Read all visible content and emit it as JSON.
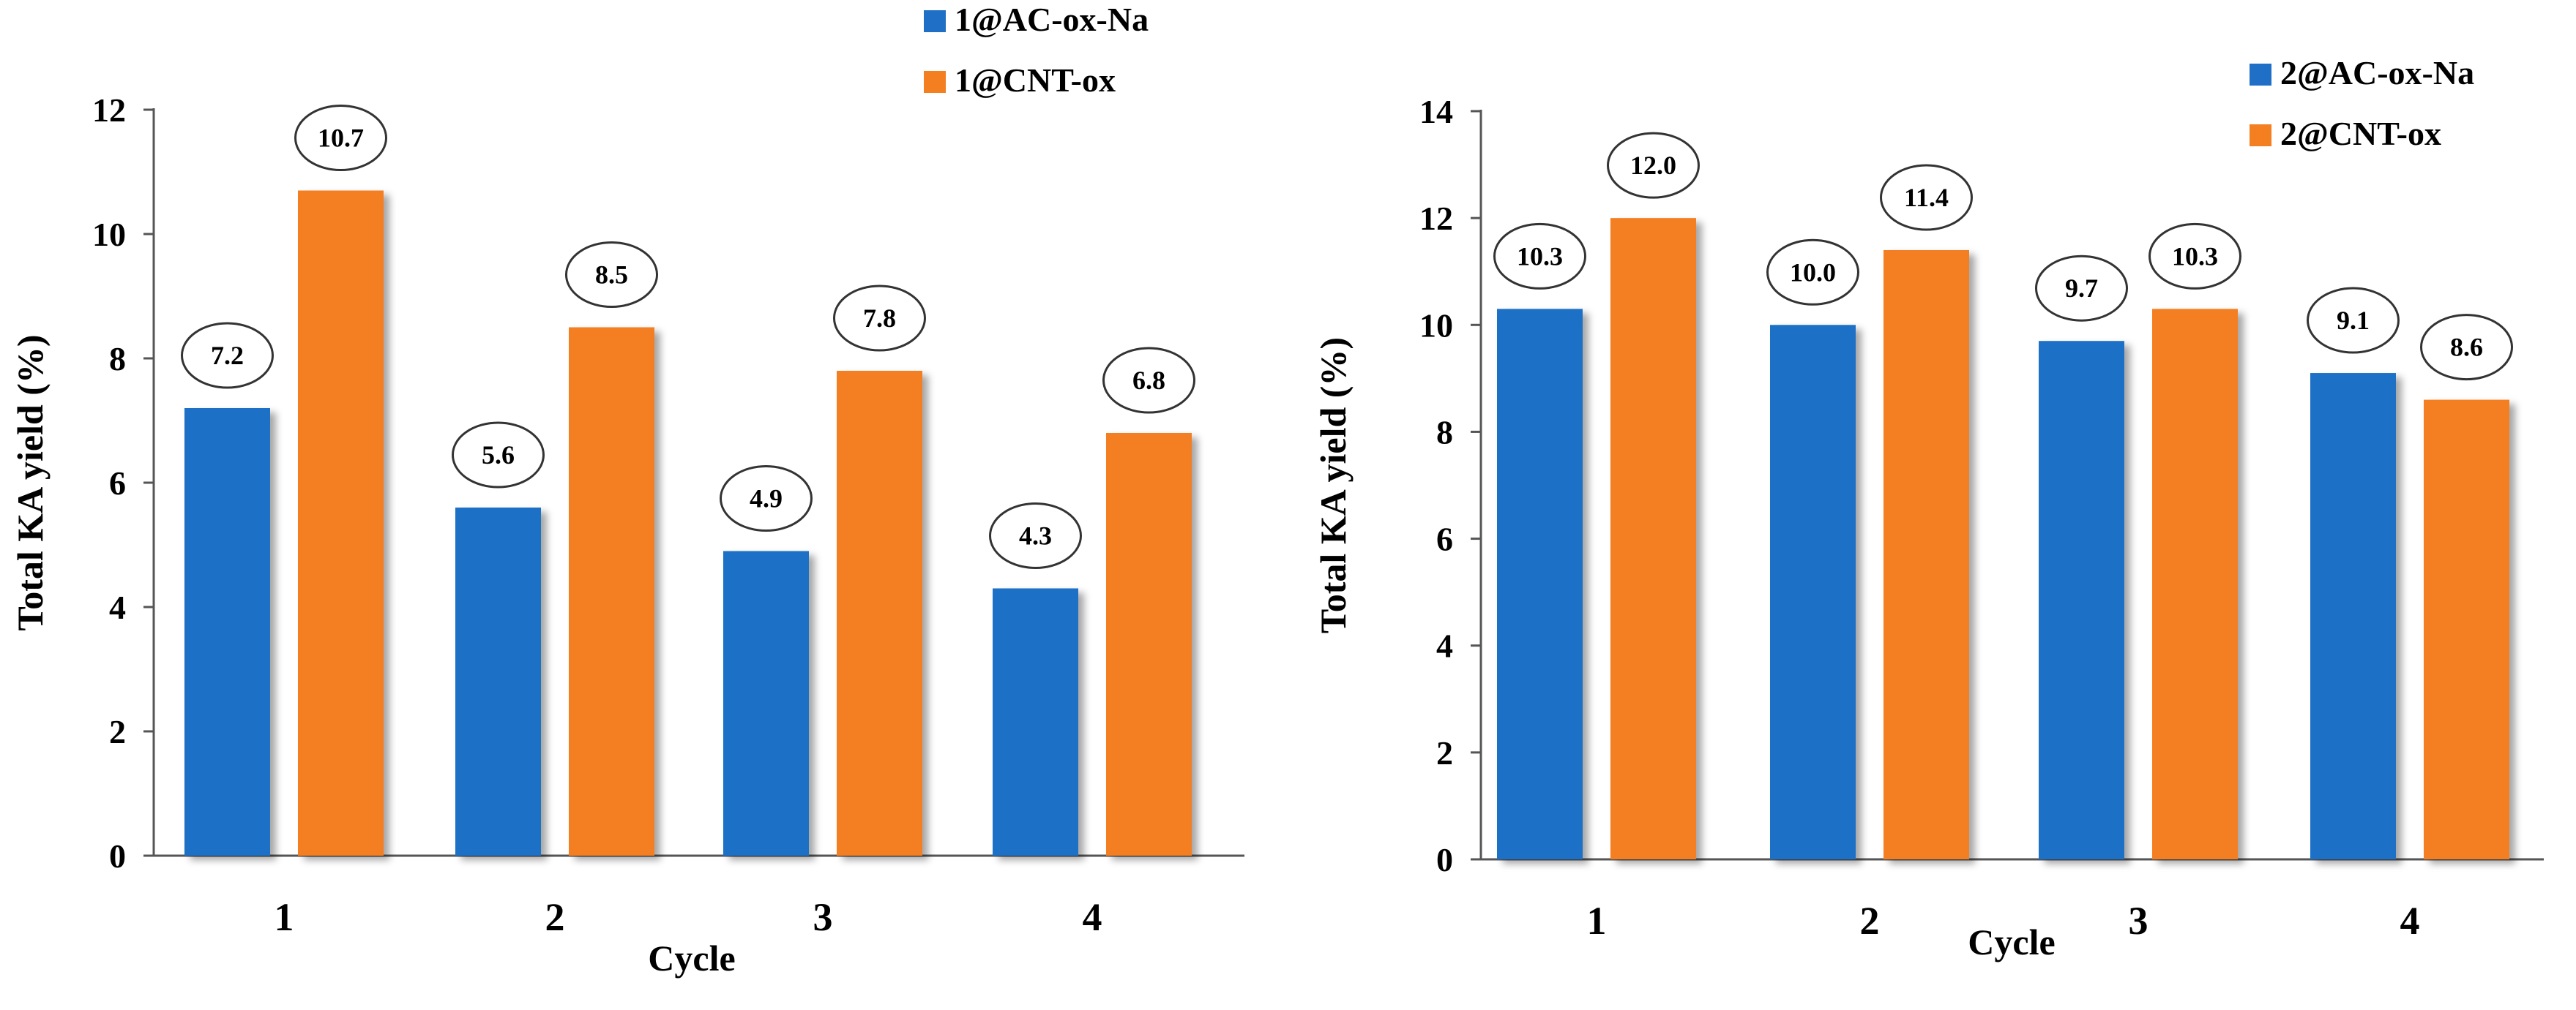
{
  "chart_data": [
    {
      "type": "bar",
      "title": "",
      "categories": [
        "1",
        "2",
        "3",
        "4"
      ],
      "xlabel": "Cycle",
      "ylabel": "Total KA yield (%)",
      "ylim": [
        0,
        12
      ],
      "yticks": [
        0,
        2,
        4,
        6,
        8,
        10,
        12
      ],
      "legend_position": "top-right",
      "series": [
        {
          "name": "1@AC-ox-Na",
          "color": "#1F6FC6",
          "values": [
            7.2,
            5.6,
            4.9,
            4.3
          ],
          "labels": [
            "7.2",
            "5.6",
            "4.9",
            "4.3"
          ]
        },
        {
          "name": "1@CNT-ox",
          "color": "#F47F20",
          "values": [
            10.7,
            8.5,
            7.8,
            6.8
          ],
          "labels": [
            "10.7",
            "8.5",
            "7.8",
            "6.8"
          ]
        }
      ]
    },
    {
      "type": "bar",
      "title": "",
      "categories": [
        "1",
        "2",
        "3",
        "4"
      ],
      "xlabel": "Cycle",
      "ylabel": "Total KA yield (%)",
      "ylim": [
        0,
        14
      ],
      "yticks": [
        0,
        2,
        4,
        6,
        8,
        10,
        12,
        14
      ],
      "legend_position": "top-right",
      "series": [
        {
          "name": "2@AC-ox-Na",
          "color": "#1F6FC6",
          "values": [
            10.3,
            10.0,
            9.7,
            9.1
          ],
          "labels": [
            "10.3",
            "10.0",
            "9.7",
            "9.1"
          ]
        },
        {
          "name": "2@CNT-ox",
          "color": "#F47F20",
          "values": [
            12.0,
            11.4,
            10.3,
            8.6
          ],
          "labels": [
            "12.0",
            "11.4",
            "10.3",
            "8.6"
          ]
        }
      ]
    }
  ]
}
